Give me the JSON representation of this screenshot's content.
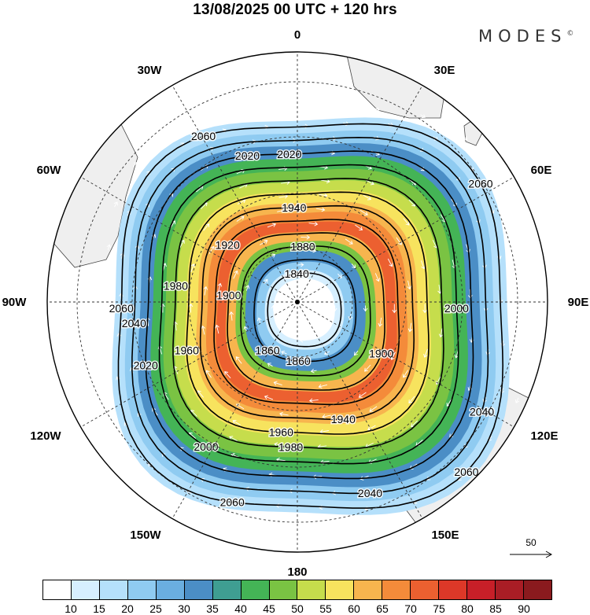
{
  "title": "13/08/2025  00 UTC  + 120 hrs",
  "brand": "MODES",
  "brand_mark": "©",
  "lon_labels": {
    "n": "0",
    "e30": "30E",
    "e60": "60E",
    "e90": "90E",
    "e120": "120E",
    "e150": "150E",
    "s": "180",
    "w150": "150W",
    "w120": "120W",
    "w90": "90W",
    "w60": "60W",
    "w30": "30W"
  },
  "ref_vector": "50",
  "colorbar": {
    "colors": [
      "#ffffff",
      "#d6efff",
      "#b5e0fb",
      "#8fcbf1",
      "#6aaee0",
      "#4b8ec6",
      "#3f9e92",
      "#44b456",
      "#7ac343",
      "#c6dd4c",
      "#f7e35e",
      "#f7b54e",
      "#f48b3a",
      "#ec6030",
      "#dd3828",
      "#c71f28",
      "#a91d25",
      "#8a1a1e"
    ],
    "labels": [
      "10",
      "15",
      "20",
      "25",
      "30",
      "35",
      "40",
      "45",
      "50",
      "55",
      "60",
      "65",
      "70",
      "75",
      "80",
      "85",
      "90"
    ]
  },
  "contours": [
    {
      "value": 2060,
      "label": "2060"
    },
    {
      "value": 2040,
      "label": "2040"
    },
    {
      "value": 2020,
      "label": "2020"
    },
    {
      "value": 2000,
      "label": "2000"
    },
    {
      "value": 1980,
      "label": "1980"
    },
    {
      "value": 1960,
      "label": "1960"
    },
    {
      "value": 1940,
      "label": "1940"
    },
    {
      "value": 1920,
      "label": "1920"
    },
    {
      "value": 1900,
      "label": "1900"
    },
    {
      "value": 1880,
      "label": "1880"
    },
    {
      "value": 1860,
      "label": "1860"
    },
    {
      "value": 1840,
      "label": "1840"
    }
  ],
  "contour_label_marks": [
    {
      "text": "2060",
      "contour": 2060,
      "angle_deg": -120
    },
    {
      "text": "2060",
      "contour": 2060,
      "angle_deg": 180
    },
    {
      "text": "2060",
      "contour": 2060,
      "angle_deg": 110
    },
    {
      "text": "2060",
      "contour": 2060,
      "angle_deg": -35
    },
    {
      "text": "2060",
      "contour": 2060,
      "angle_deg": 45
    },
    {
      "text": "2040",
      "contour": 2040,
      "angle_deg": 175
    },
    {
      "text": "2040",
      "contour": 2040,
      "angle_deg": 70
    },
    {
      "text": "2040",
      "contour": 2040,
      "angle_deg": 30
    },
    {
      "text": "2020",
      "contour": 2020,
      "angle_deg": -110
    },
    {
      "text": "2020",
      "contour": 2020,
      "angle_deg": 160
    },
    {
      "text": "2020",
      "contour": 2020,
      "angle_deg": -95
    },
    {
      "text": "2000",
      "contour": 2000,
      "angle_deg": 125
    },
    {
      "text": "2000",
      "contour": 2000,
      "angle_deg": 0
    },
    {
      "text": "1980",
      "contour": 1980,
      "angle_deg": -170
    },
    {
      "text": "1980",
      "contour": 1980,
      "angle_deg": 95
    },
    {
      "text": "1960",
      "contour": 1960,
      "angle_deg": 160
    },
    {
      "text": "1960",
      "contour": 1960,
      "angle_deg": 100
    },
    {
      "text": "1940",
      "contour": 1940,
      "angle_deg": -95
    },
    {
      "text": "1940",
      "contour": 1940,
      "angle_deg": 70
    },
    {
      "text": "1920",
      "contour": 1920,
      "angle_deg": -140
    },
    {
      "text": "1900",
      "contour": 1900,
      "angle_deg": 30
    },
    {
      "text": "1900",
      "contour": 1900,
      "angle_deg": -170
    },
    {
      "text": "1880",
      "contour": 1880,
      "angle_deg": -90
    },
    {
      "text": "1860",
      "contour": 1860,
      "angle_deg": 95
    },
    {
      "text": "1860",
      "contour": 1860,
      "angle_deg": 130
    },
    {
      "text": "1840",
      "contour": 1840,
      "angle_deg": -100
    }
  ]
}
